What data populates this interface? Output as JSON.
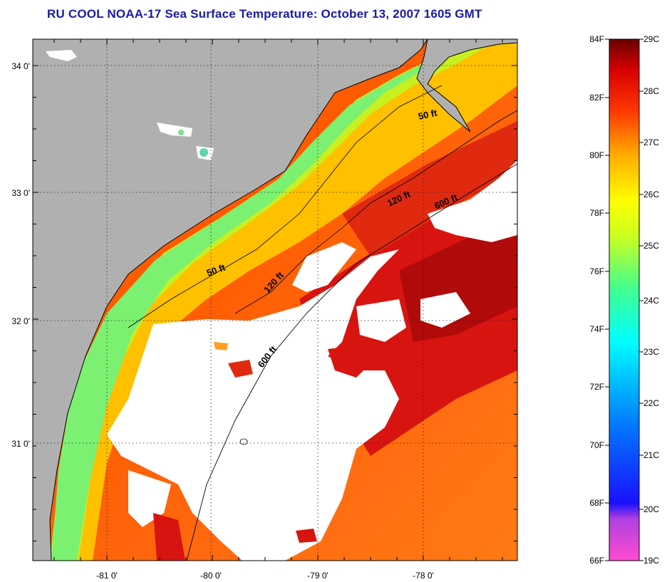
{
  "title": "RU COOL  NOAA-17  Sea Surface Temperature:  October 13, 2007 1605 GMT",
  "map": {
    "lat_ticks": [
      {
        "label": "34 0'"
      },
      {
        "label": "33 0'"
      },
      {
        "label": "32 0'"
      },
      {
        "label": "31 0'"
      }
    ],
    "lon_ticks": [
      {
        "label": "-81 0'"
      },
      {
        "label": "-80 0'"
      },
      {
        "label": "-79 0'"
      },
      {
        "label": "-78 0'"
      }
    ],
    "contour_labels": [
      "50 ft",
      "50 ft",
      "120 ft",
      "120 ft",
      "600 ft",
      "600 ft"
    ],
    "colors": {
      "land": "#b0b0b0",
      "cloud": "#ffffff",
      "coast": "#000000"
    }
  },
  "colorbar": {
    "fahrenheit_labels": [
      "84F",
      "82F",
      "80F",
      "78F",
      "76F",
      "74F",
      "72F",
      "70F",
      "68F",
      "66F"
    ],
    "celsius_labels": [
      "29C",
      "28C",
      "27C",
      "26C",
      "25C",
      "24C",
      "23C",
      "22C",
      "21C",
      "20C",
      "19C"
    ],
    "gradient": [
      "#ff4cd2",
      "#8a2be2",
      "#0000ff",
      "#0090ff",
      "#00ffff",
      "#40ff90",
      "#b8ff30",
      "#ffff00",
      "#ffa500",
      "#ff2a00",
      "#d00000",
      "#700000"
    ]
  }
}
